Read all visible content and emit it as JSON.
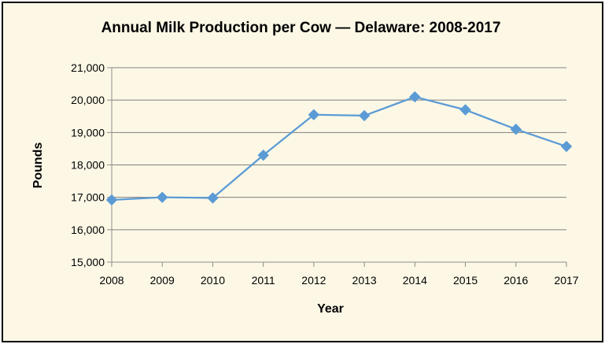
{
  "chart_data": {
    "type": "line",
    "title": "Annual Milk Production per Cow — Delaware: 2008-2017",
    "xlabel": "Year",
    "ylabel": "Pounds",
    "x": [
      "2008",
      "2009",
      "2010",
      "2011",
      "2012",
      "2013",
      "2014",
      "2015",
      "2016",
      "2017"
    ],
    "series": [
      {
        "values": [
          16920,
          17000,
          16980,
          18300,
          19550,
          19520,
          20100,
          19700,
          19100,
          18570
        ]
      }
    ],
    "ylim": [
      15000,
      21000
    ],
    "yticks": [
      15000,
      16000,
      17000,
      18000,
      19000,
      20000,
      21000
    ],
    "ytick_labels": [
      "15,000",
      "16,000",
      "17,000",
      "18,000",
      "19,000",
      "20,000",
      "21,000"
    ],
    "grid": true,
    "legend": "none",
    "colors": {
      "series": "#5b9bd5",
      "chart_background": "#fdf8e6",
      "plot_background": "#fdf8e6",
      "grid": "#7f7f7f"
    }
  }
}
